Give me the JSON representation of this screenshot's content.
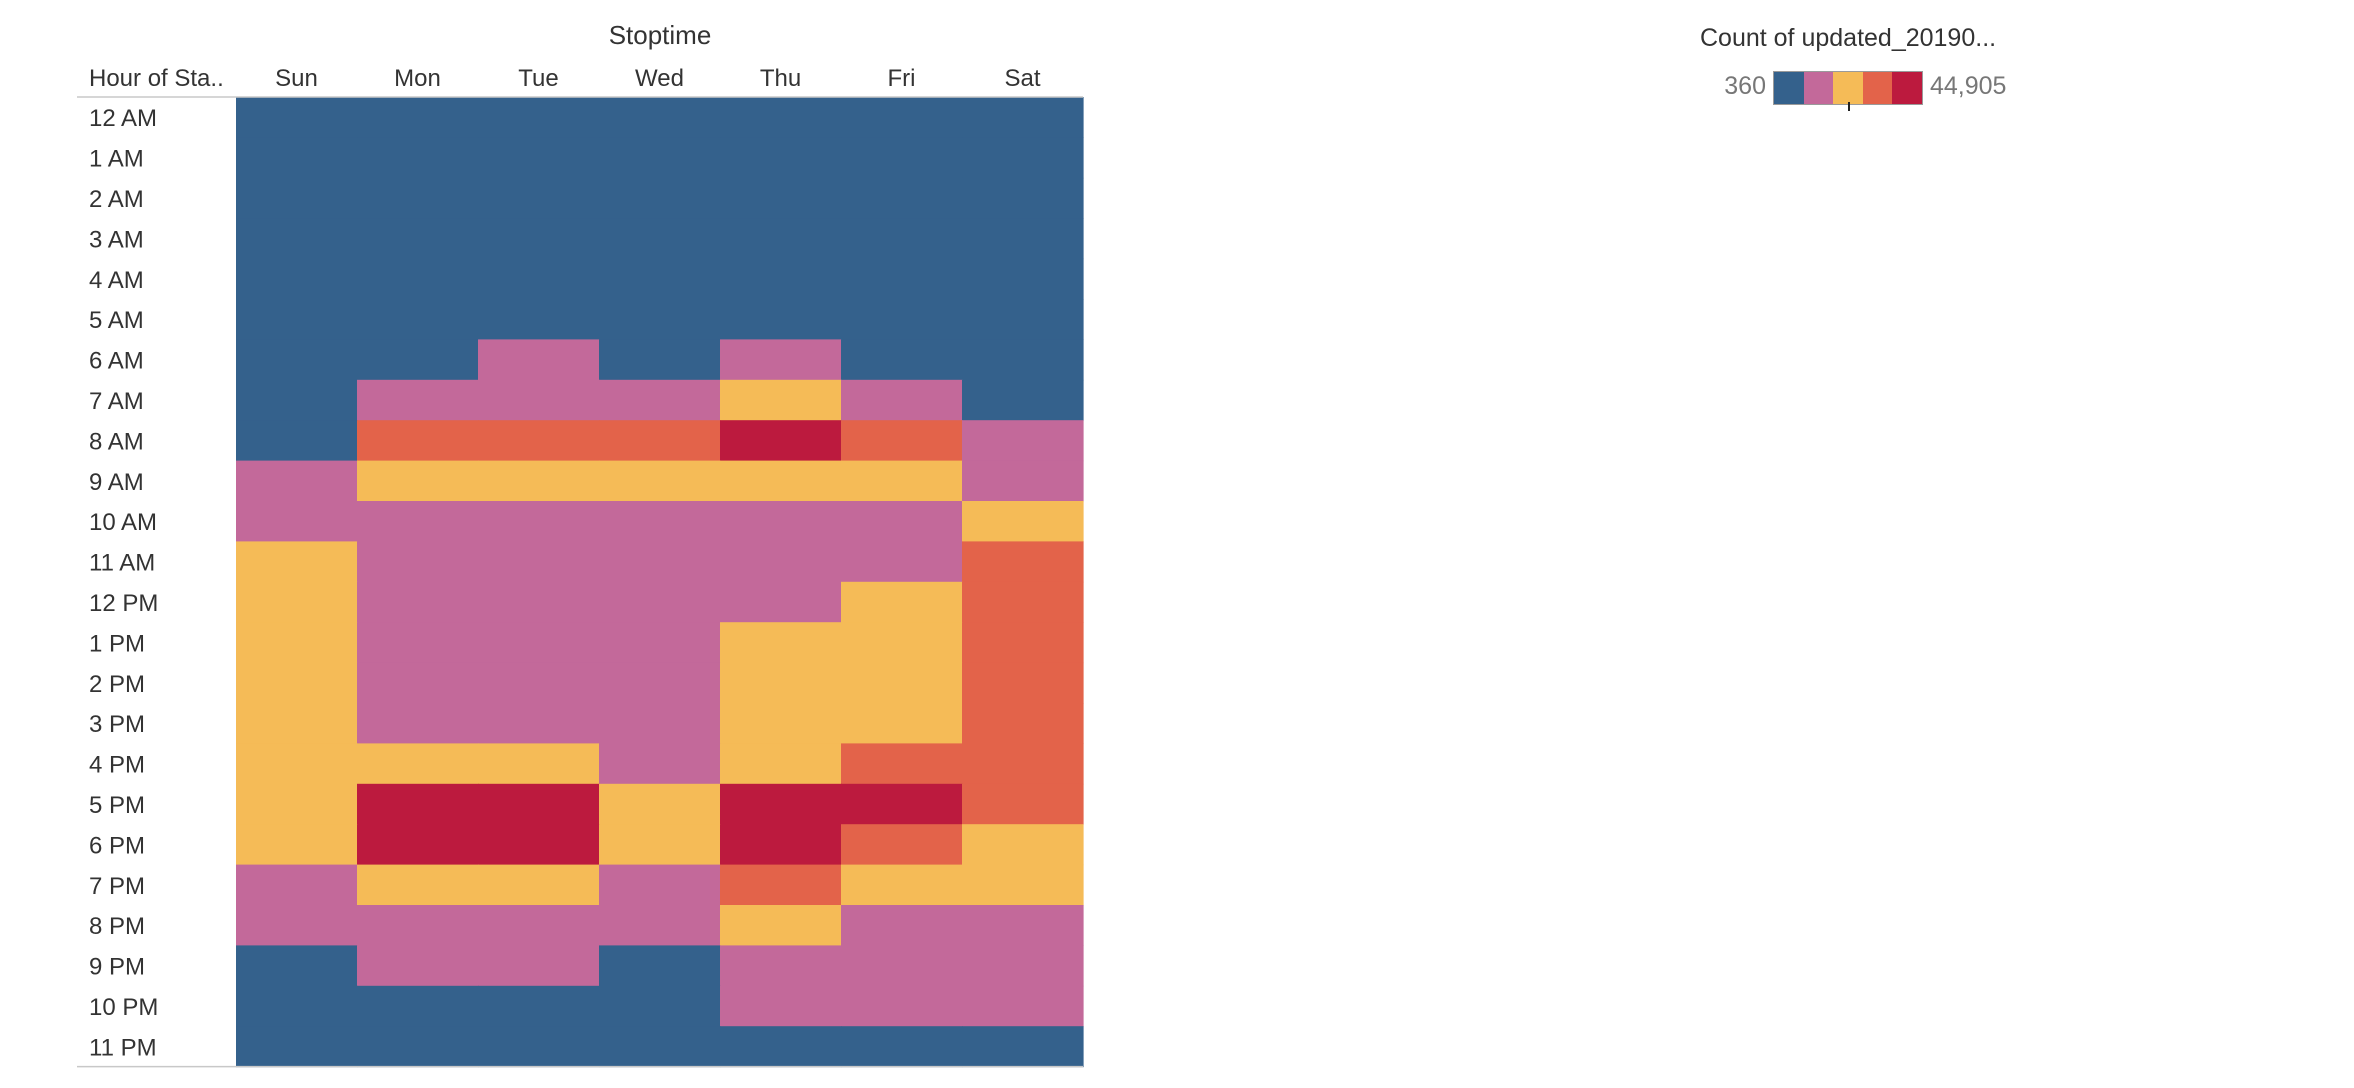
{
  "chart_data": {
    "type": "heatmap",
    "title": "Stoptime",
    "row_header": "Hour of Sta..",
    "x": [
      "Sun",
      "Mon",
      "Tue",
      "Wed",
      "Thu",
      "Fri",
      "Sat"
    ],
    "y": [
      "12 AM",
      "1 AM",
      "2 AM",
      "3 AM",
      "4 AM",
      "5 AM",
      "6 AM",
      "7 AM",
      "8 AM",
      "9 AM",
      "10 AM",
      "11 AM",
      "12 PM",
      "1 PM",
      "2 PM",
      "3 PM",
      "4 PM",
      "5 PM",
      "6 PM",
      "7 PM",
      "8 PM",
      "9 PM",
      "10 PM",
      "11 PM"
    ],
    "color_scale": {
      "title": "Count of updated_20190...",
      "min_label": "360",
      "max_label": "44,905",
      "min": 360,
      "max": 44905,
      "bins": [
        "#34618c",
        "#c3699a",
        "#f5bb57",
        "#e3634a",
        "#bc1a3e"
      ]
    },
    "value_note": "color bin per cell: 0 lowest ... 4 highest",
    "values": [
      [
        0,
        0,
        0,
        0,
        0,
        0,
        0
      ],
      [
        0,
        0,
        0,
        0,
        0,
        0,
        0
      ],
      [
        0,
        0,
        0,
        0,
        0,
        0,
        0
      ],
      [
        0,
        0,
        0,
        0,
        0,
        0,
        0
      ],
      [
        0,
        0,
        0,
        0,
        0,
        0,
        0
      ],
      [
        0,
        0,
        0,
        0,
        0,
        0,
        0
      ],
      [
        0,
        0,
        1,
        0,
        1,
        0,
        0
      ],
      [
        0,
        1,
        1,
        1,
        2,
        1,
        0
      ],
      [
        0,
        3,
        3,
        3,
        4,
        3,
        1
      ],
      [
        1,
        2,
        2,
        2,
        2,
        2,
        1
      ],
      [
        1,
        1,
        1,
        1,
        1,
        1,
        2
      ],
      [
        2,
        1,
        1,
        1,
        1,
        1,
        3
      ],
      [
        2,
        1,
        1,
        1,
        1,
        2,
        3
      ],
      [
        2,
        1,
        1,
        1,
        2,
        2,
        3
      ],
      [
        2,
        1,
        1,
        1,
        2,
        2,
        3
      ],
      [
        2,
        1,
        1,
        1,
        2,
        2,
        3
      ],
      [
        2,
        2,
        2,
        1,
        2,
        3,
        3
      ],
      [
        2,
        4,
        4,
        2,
        4,
        4,
        3
      ],
      [
        2,
        4,
        4,
        2,
        4,
        3,
        2
      ],
      [
        1,
        2,
        2,
        1,
        3,
        2,
        2
      ],
      [
        1,
        1,
        1,
        1,
        2,
        1,
        1
      ],
      [
        0,
        1,
        1,
        0,
        1,
        1,
        1
      ],
      [
        0,
        0,
        0,
        0,
        1,
        1,
        1
      ],
      [
        0,
        0,
        0,
        0,
        0,
        0,
        0
      ]
    ]
  }
}
